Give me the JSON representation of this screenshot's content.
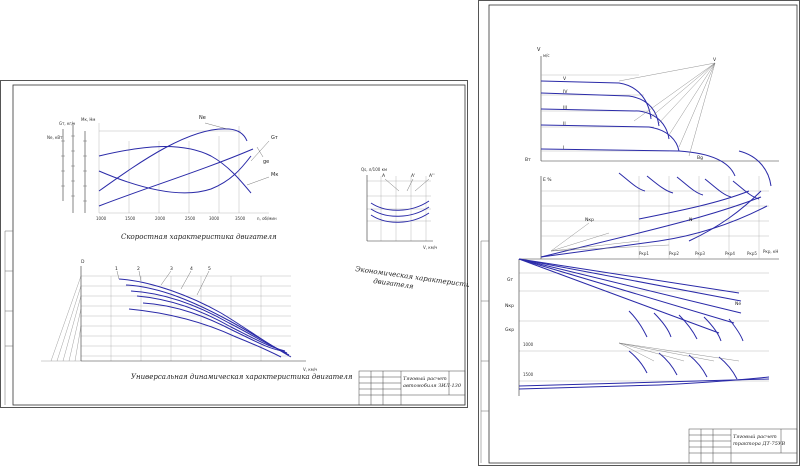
{
  "left_sheet": {
    "speed_chart": {
      "caption": "Скоростная характеристика двигателя",
      "x_ticks": [
        "1000",
        "1500",
        "2000",
        "2500",
        "3000",
        "3500"
      ],
      "x_unit": "n, об/мин",
      "y_left_label": "Gт, кг/ч",
      "y_left_label2": "Ne, кВт",
      "y_inner_label": "Mк, Нм",
      "curve_labels": [
        "Ne",
        "Gт",
        "Mк",
        "ge"
      ]
    },
    "economic_chart": {
      "caption_line1": "Экономическая характеристика",
      "caption_line2": "двигателя",
      "y_label": "Qs, л/100 км",
      "x_label": "V, км/ч",
      "curve_labels": [
        "A",
        "A'",
        "A''"
      ]
    },
    "dynamic_chart": {
      "caption": "Универсальная динамическая характеристика двигателя",
      "y_label": "D",
      "x_label": "V, км/ч",
      "curve_labels": [
        "1",
        "2",
        "3",
        "4",
        "5"
      ]
    },
    "title_block": {
      "line1": "Тяговый расчет",
      "line2": "автомобиля ЗИЛ-130"
    }
  },
  "right_sheet": {
    "top_chart": {
      "y_label": "V",
      "y_unit": "м/с",
      "gear_labels": [
        "V",
        "IV",
        "III",
        "II",
        "I"
      ],
      "pole_label": "V",
      "mid_label": "Bg",
      "e_label": "E %"
    },
    "traction_chart": {
      "y_label": "Bт",
      "x_label": "Pкр, кН",
      "p_labels": [
        "Pкр1",
        "Pкр2",
        "Pкр3",
        "Pкр4",
        "Pкр5"
      ],
      "n_label": "Nкр",
      "pole_label": "N"
    },
    "lower_chart": {
      "labels": [
        "Gт",
        "Nкр",
        "Gкр",
        "Ne"
      ],
      "tick_1000": "1000",
      "tick_1500": "1500"
    },
    "title_block": {
      "line1": "Тяговый расчет",
      "line2": "трактора ДТ-75УВ"
    }
  }
}
